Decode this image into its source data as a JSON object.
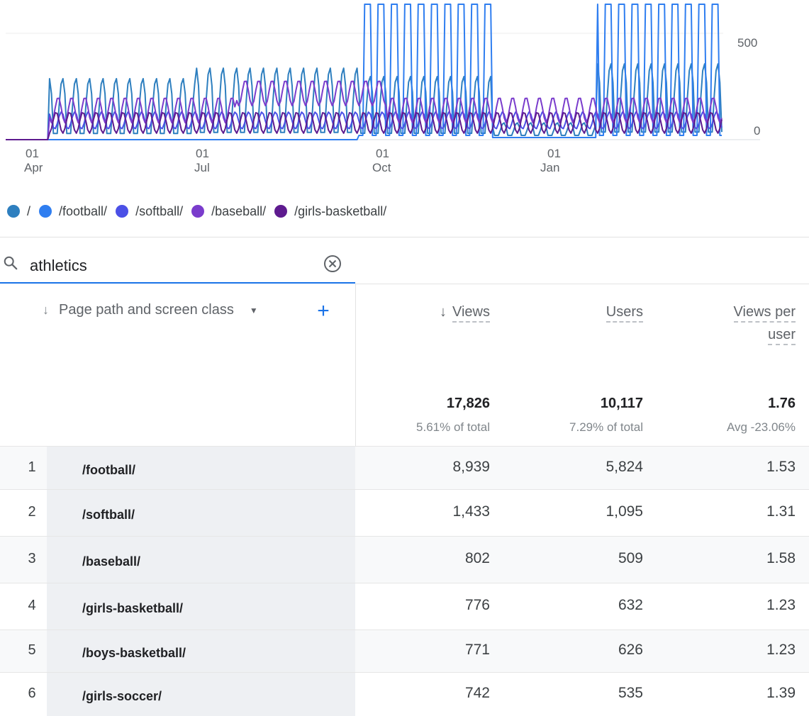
{
  "chart": {
    "x_ticks": [
      {
        "day": "01",
        "month": "Apr"
      },
      {
        "day": "01",
        "month": "Jul"
      },
      {
        "day": "01",
        "month": "Oct"
      },
      {
        "day": "01",
        "month": "Jan"
      }
    ],
    "y_ticks": [
      "500",
      "0"
    ],
    "colors": [
      "#2e7fbf",
      "#2f7ef0",
      "#4b50e6",
      "#7a3ccc",
      "#5e1b8f"
    ]
  },
  "legend": [
    {
      "label": "/",
      "color": "#2e7fbf"
    },
    {
      "label": "/football/",
      "color": "#2f7ef0"
    },
    {
      "label": "/softball/",
      "color": "#4b50e6"
    },
    {
      "label": "/baseball/",
      "color": "#7a3ccc"
    },
    {
      "label": "/girls-basketball/",
      "color": "#5e1b8f"
    }
  ],
  "search": {
    "value": "athletics"
  },
  "table": {
    "dimension_header": "Page path and screen class",
    "headers": {
      "views": "Views",
      "users": "Users",
      "views_per_user_1": "Views per",
      "views_per_user_2": "user"
    },
    "totals": {
      "views": "17,826",
      "views_sub": "5.61% of total",
      "users": "10,117",
      "users_sub": "7.29% of total",
      "vpu": "1.76",
      "vpu_sub": "Avg -23.06%"
    },
    "rows": [
      {
        "num": "1",
        "path": "/football/",
        "views": "8,939",
        "users": "5,824",
        "vpu": "1.53"
      },
      {
        "num": "2",
        "path": "/softball/",
        "views": "1,433",
        "users": "1,095",
        "vpu": "1.31"
      },
      {
        "num": "3",
        "path": "/baseball/",
        "views": "802",
        "users": "509",
        "vpu": "1.58"
      },
      {
        "num": "4",
        "path": "/girls-basketball/",
        "views": "776",
        "users": "632",
        "vpu": "1.23"
      },
      {
        "num": "5",
        "path": "/boys-basketball/",
        "views": "771",
        "users": "626",
        "vpu": "1.23"
      },
      {
        "num": "6",
        "path": "/girls-soccer/",
        "views": "742",
        "users": "535",
        "vpu": "1.39"
      }
    ]
  }
}
